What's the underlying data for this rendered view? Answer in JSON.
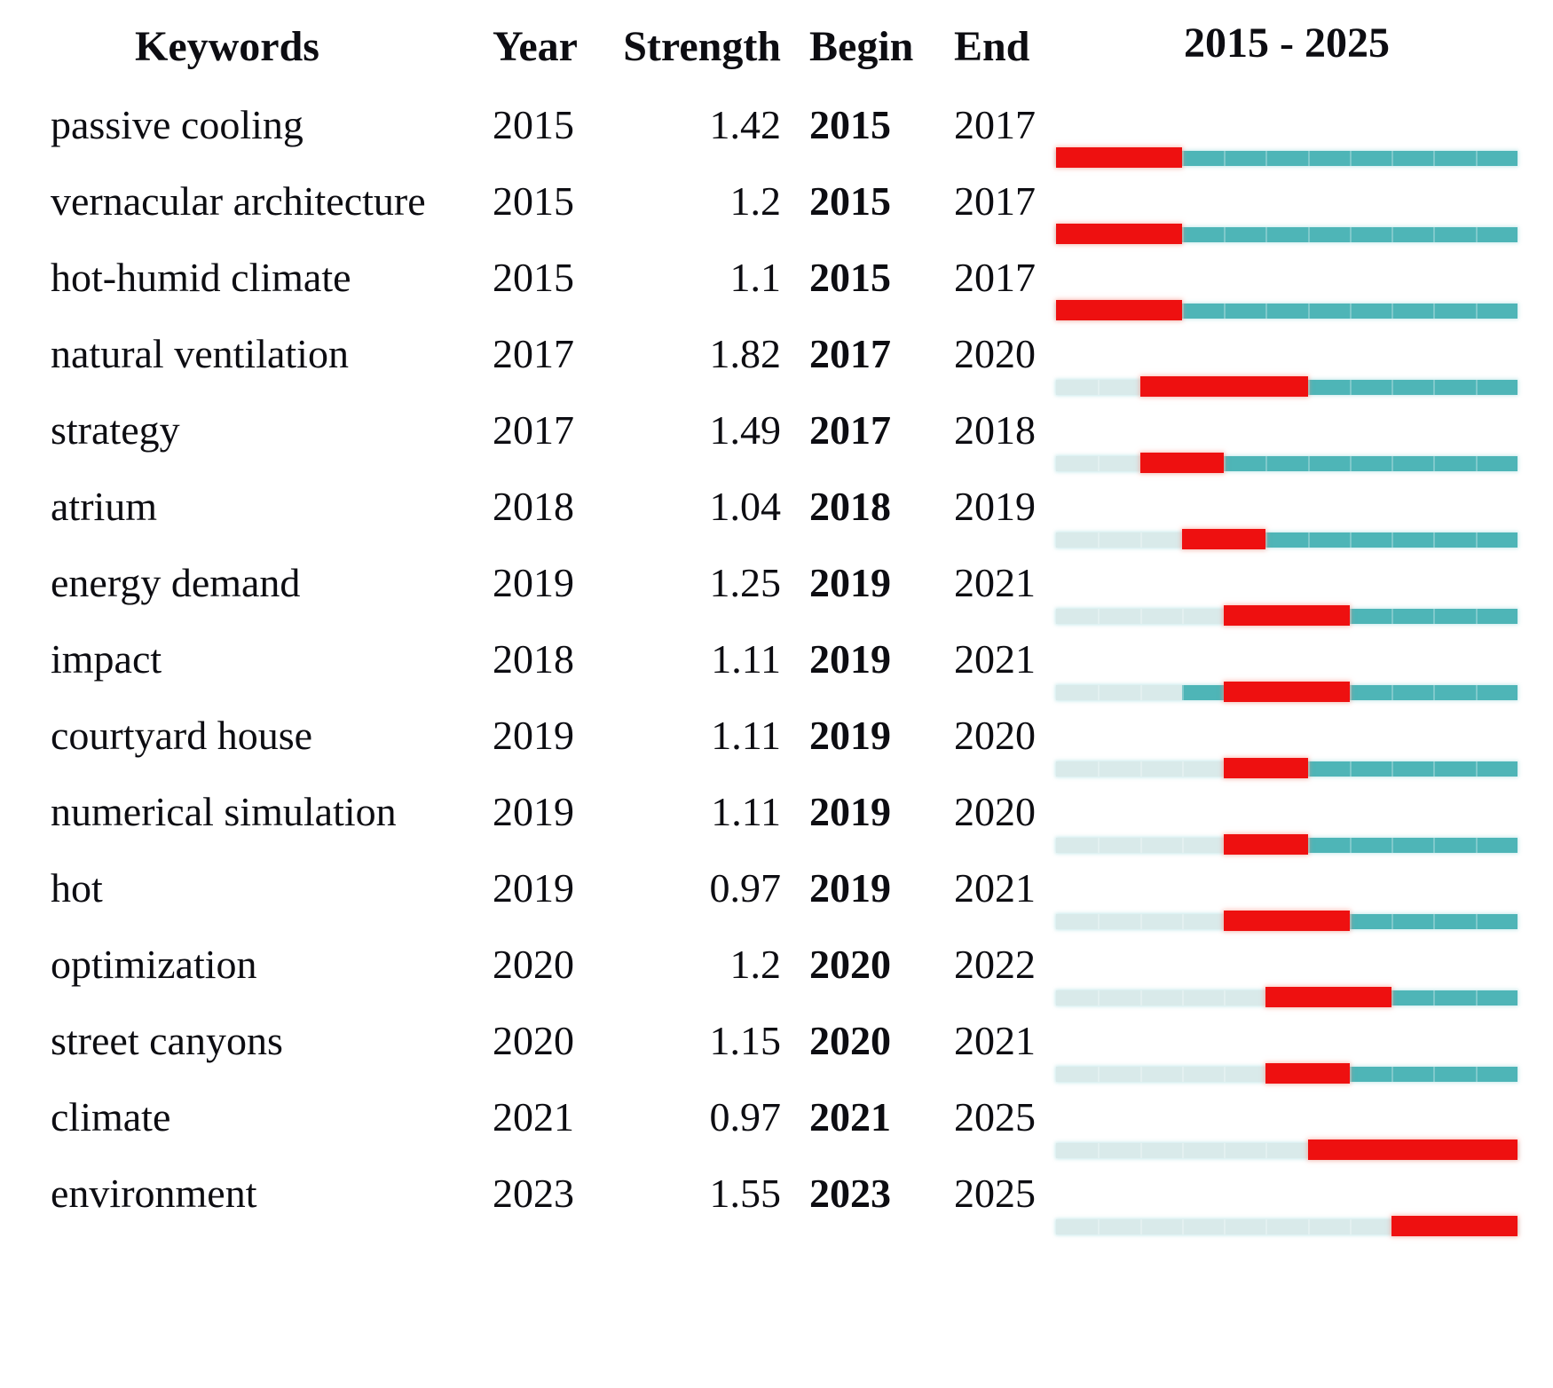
{
  "figure": {
    "timeline_header": "2015 - 2025"
  },
  "colors": {
    "burst_red": "#ee1010",
    "active_teal": "#4eb5b7",
    "inactive_pale": "#d9eaea"
  },
  "chart_data": {
    "type": "table",
    "columns": [
      "Keywords",
      "Year",
      "Strength",
      "Begin",
      "End",
      "2015 - 2025"
    ],
    "timeline_range": [
      2015,
      2025
    ],
    "legend": {
      "red_segment": "burst period (Begin-End)",
      "teal_segment": "keyword active, no burst",
      "pale_segment": "before first appearance year"
    },
    "rows": [
      {
        "keyword": "passive cooling",
        "year": 2015,
        "strength": "1.42",
        "begin": 2015,
        "end": 2017
      },
      {
        "keyword": "vernacular architecture",
        "year": 2015,
        "strength": "1.2",
        "begin": 2015,
        "end": 2017
      },
      {
        "keyword": "hot-humid climate",
        "year": 2015,
        "strength": "1.1",
        "begin": 2015,
        "end": 2017
      },
      {
        "keyword": "natural ventilation",
        "year": 2017,
        "strength": "1.82",
        "begin": 2017,
        "end": 2020
      },
      {
        "keyword": "strategy",
        "year": 2017,
        "strength": "1.49",
        "begin": 2017,
        "end": 2018
      },
      {
        "keyword": "atrium",
        "year": 2018,
        "strength": "1.04",
        "begin": 2018,
        "end": 2019
      },
      {
        "keyword": "energy demand",
        "year": 2019,
        "strength": "1.25",
        "begin": 2019,
        "end": 2021
      },
      {
        "keyword": "impact",
        "year": 2018,
        "strength": "1.11",
        "begin": 2019,
        "end": 2021
      },
      {
        "keyword": "courtyard house",
        "year": 2019,
        "strength": "1.11",
        "begin": 2019,
        "end": 2020
      },
      {
        "keyword": "numerical simulation",
        "year": 2019,
        "strength": "1.11",
        "begin": 2019,
        "end": 2020
      },
      {
        "keyword": "hot",
        "year": 2019,
        "strength": "0.97",
        "begin": 2019,
        "end": 2021
      },
      {
        "keyword": "optimization",
        "year": 2020,
        "strength": "1.2",
        "begin": 2020,
        "end": 2022
      },
      {
        "keyword": "street canyons",
        "year": 2020,
        "strength": "1.15",
        "begin": 2020,
        "end": 2021
      },
      {
        "keyword": "climate",
        "year": 2021,
        "strength": "0.97",
        "begin": 2021,
        "end": 2025
      },
      {
        "keyword": "environment",
        "year": 2023,
        "strength": "1.55",
        "begin": 2023,
        "end": 2025
      }
    ]
  }
}
